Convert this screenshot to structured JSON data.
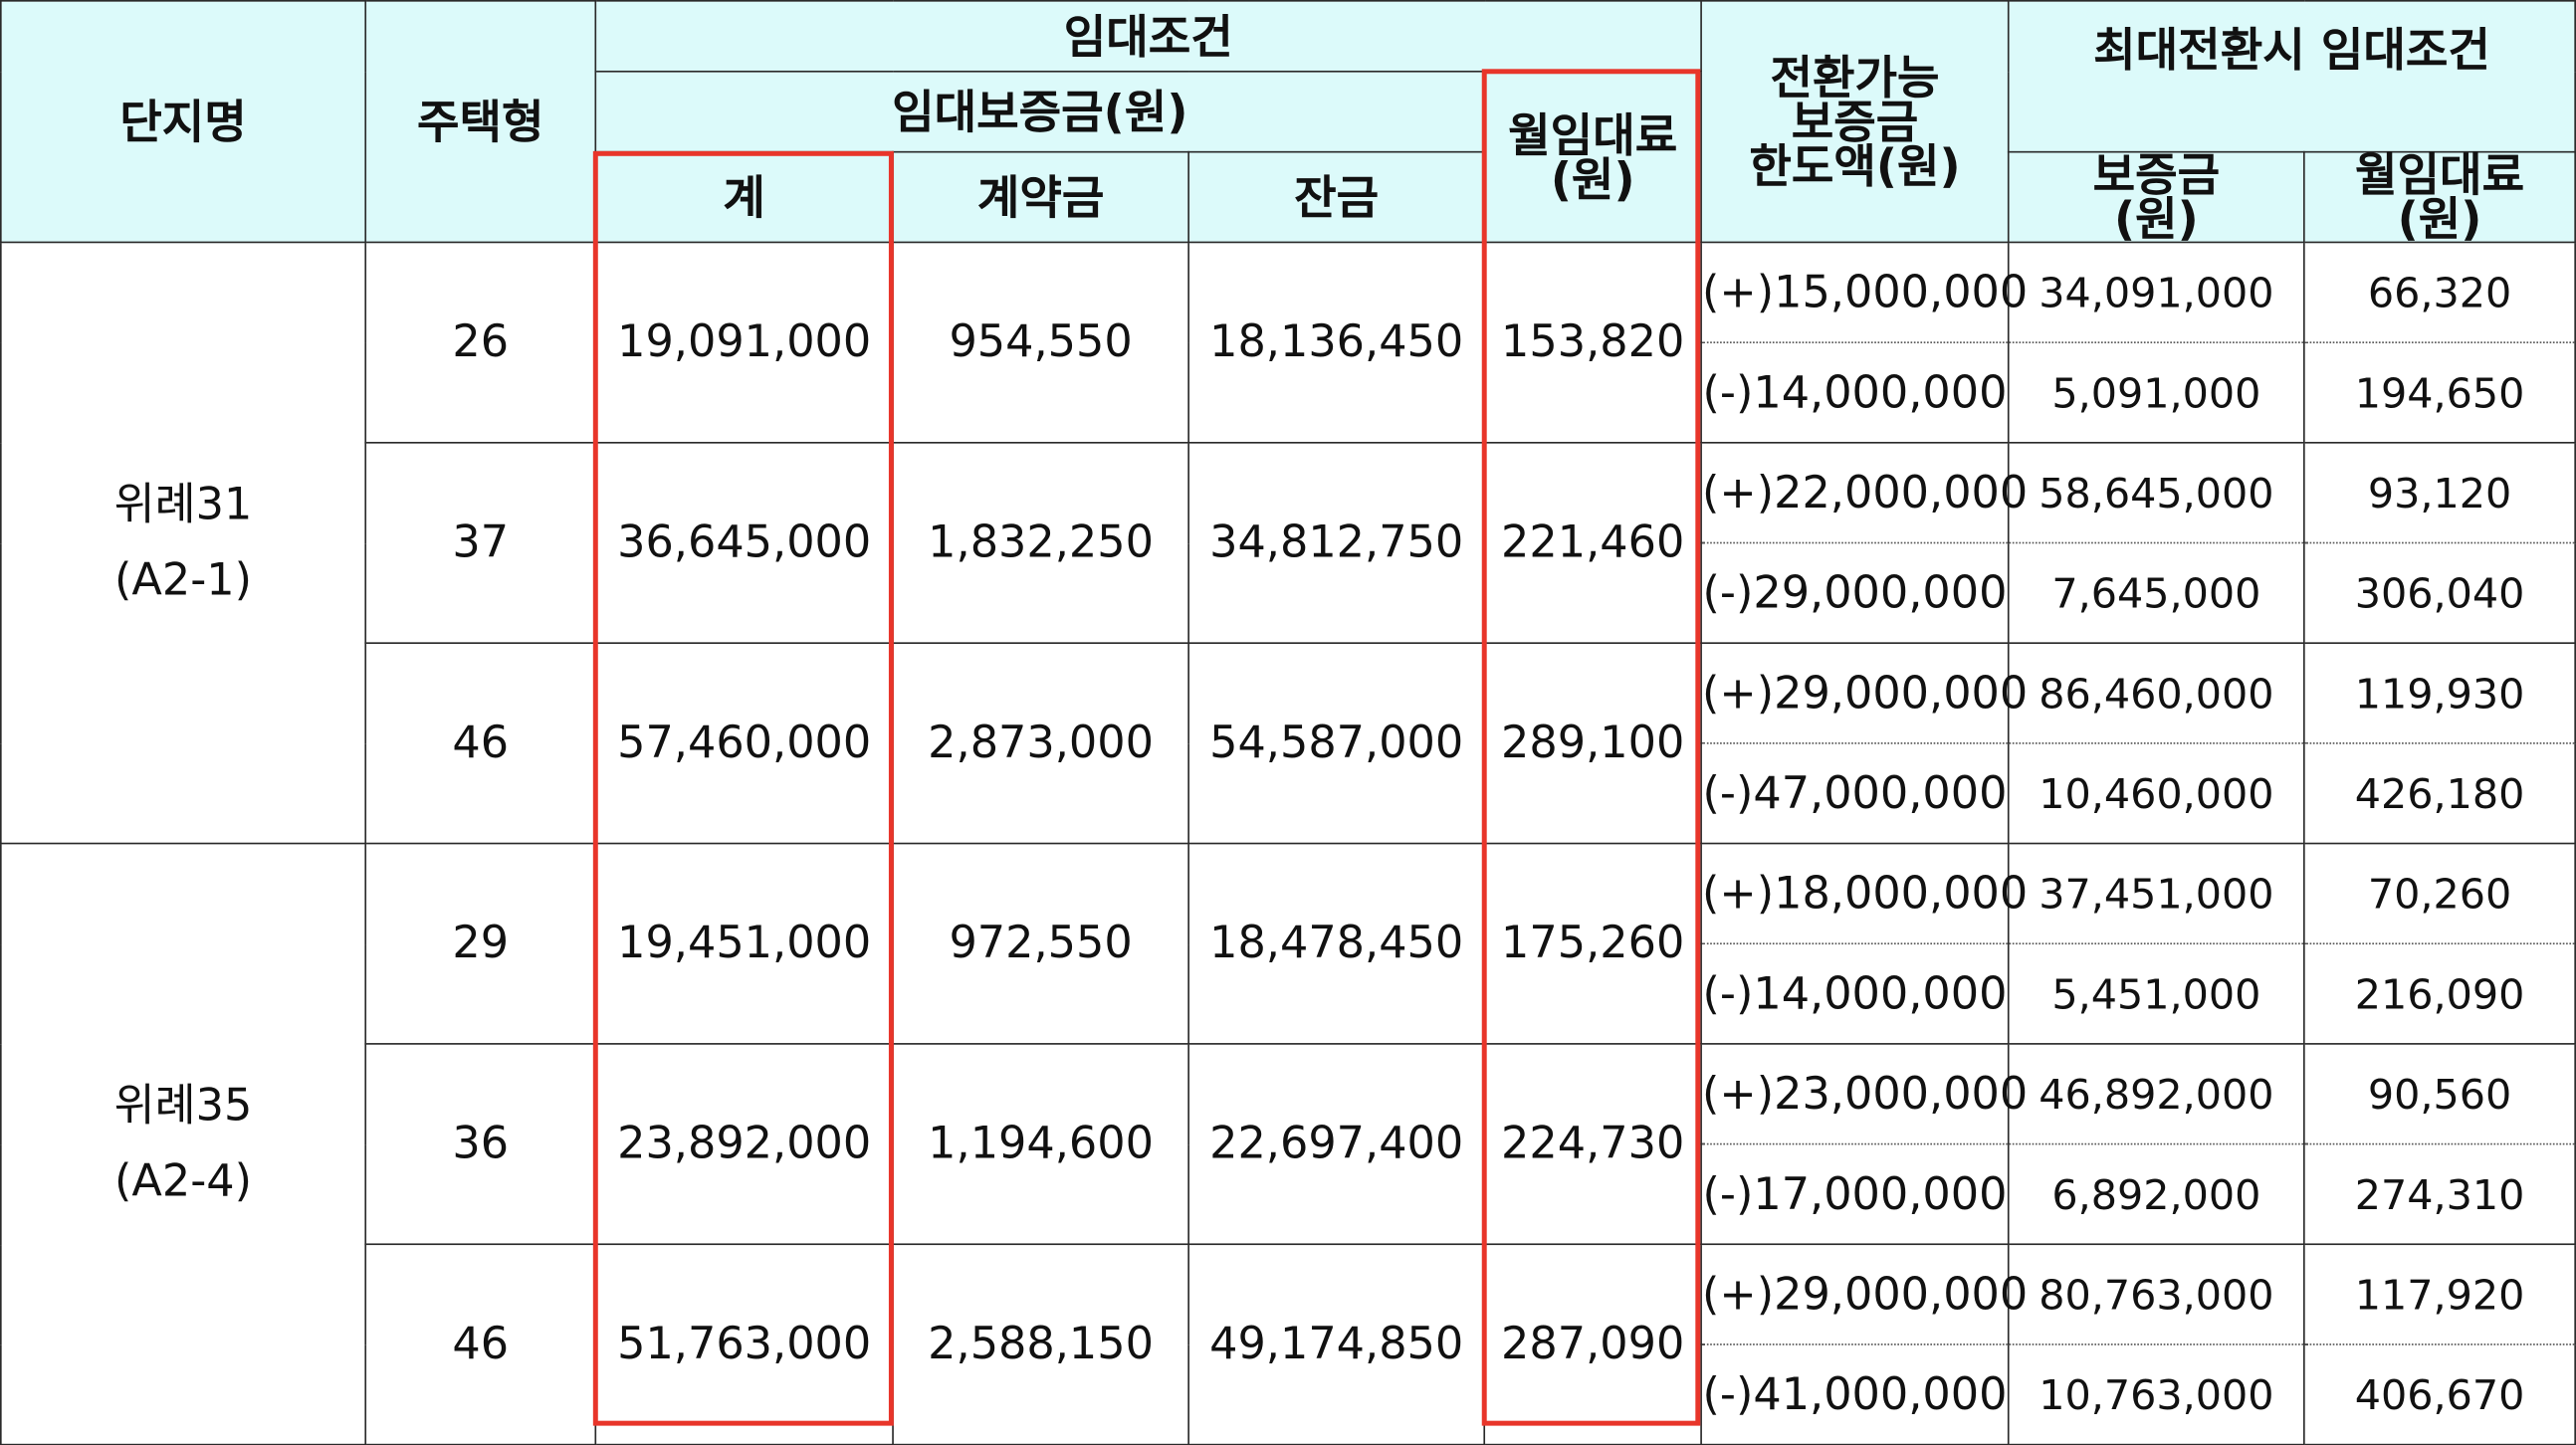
{
  "header": {
    "complex": "단지명",
    "type": "주택형",
    "rental_terms": "임대조건",
    "deposit": "임대보증금(원)",
    "total": "계",
    "contract": "계약금",
    "balance": "잔금",
    "monthly_rent_l1": "월임대료",
    "monthly_rent_l2": "(원)",
    "convertible_l1": "전환가능",
    "convertible_l2": "보증금",
    "convertible_l3": "한도액(원)",
    "max_conv": "최대전환시  임대조건",
    "max_deposit_l1": "보증금",
    "max_deposit_l2": "(원)",
    "max_rent_l1": "월임대료",
    "max_rent_l2": "(원)"
  },
  "complexes": [
    {
      "name_l1": "위례31",
      "name_l2": "(A2-1)",
      "rows": [
        {
          "type": "26",
          "total": "19,091,000",
          "contract": "954,550",
          "balance": "18,136,450",
          "rent": "153,820",
          "plus": {
            "limit": "(+)15,000,000",
            "deposit": "34,091,000",
            "rent": "66,320"
          },
          "minus": {
            "limit": "(-)14,000,000",
            "deposit": "5,091,000",
            "rent": "194,650"
          }
        },
        {
          "type": "37",
          "total": "36,645,000",
          "contract": "1,832,250",
          "balance": "34,812,750",
          "rent": "221,460",
          "plus": {
            "limit": "(+)22,000,000",
            "deposit": "58,645,000",
            "rent": "93,120"
          },
          "minus": {
            "limit": "(-)29,000,000",
            "deposit": "7,645,000",
            "rent": "306,040"
          }
        },
        {
          "type": "46",
          "total": "57,460,000",
          "contract": "2,873,000",
          "balance": "54,587,000",
          "rent": "289,100",
          "plus": {
            "limit": "(+)29,000,000",
            "deposit": "86,460,000",
            "rent": "119,930"
          },
          "minus": {
            "limit": "(-)47,000,000",
            "deposit": "10,460,000",
            "rent": "426,180"
          }
        }
      ]
    },
    {
      "name_l1": "위례35",
      "name_l2": "(A2-4)",
      "rows": [
        {
          "type": "29",
          "total": "19,451,000",
          "contract": "972,550",
          "balance": "18,478,450",
          "rent": "175,260",
          "plus": {
            "limit": "(+)18,000,000",
            "deposit": "37,451,000",
            "rent": "70,260"
          },
          "minus": {
            "limit": "(-)14,000,000",
            "deposit": "5,451,000",
            "rent": "216,090"
          }
        },
        {
          "type": "36",
          "total": "23,892,000",
          "contract": "1,194,600",
          "balance": "22,697,400",
          "rent": "224,730",
          "plus": {
            "limit": "(+)23,000,000",
            "deposit": "46,892,000",
            "rent": "90,560"
          },
          "minus": {
            "limit": "(-)17,000,000",
            "deposit": "6,892,000",
            "rent": "274,310"
          }
        },
        {
          "type": "46",
          "total": "51,763,000",
          "contract": "2,588,150",
          "balance": "49,174,850",
          "rent": "287,090",
          "plus": {
            "limit": "(+)29,000,000",
            "deposit": "80,763,000",
            "rent": "117,920"
          },
          "minus": {
            "limit": "(-)41,000,000",
            "deposit": "10,763,000",
            "rent": "406,670"
          }
        }
      ]
    }
  ],
  "colors": {
    "header_bg": "#dcfafa",
    "highlight": "#e8352a",
    "border": "#2a2a2a"
  }
}
